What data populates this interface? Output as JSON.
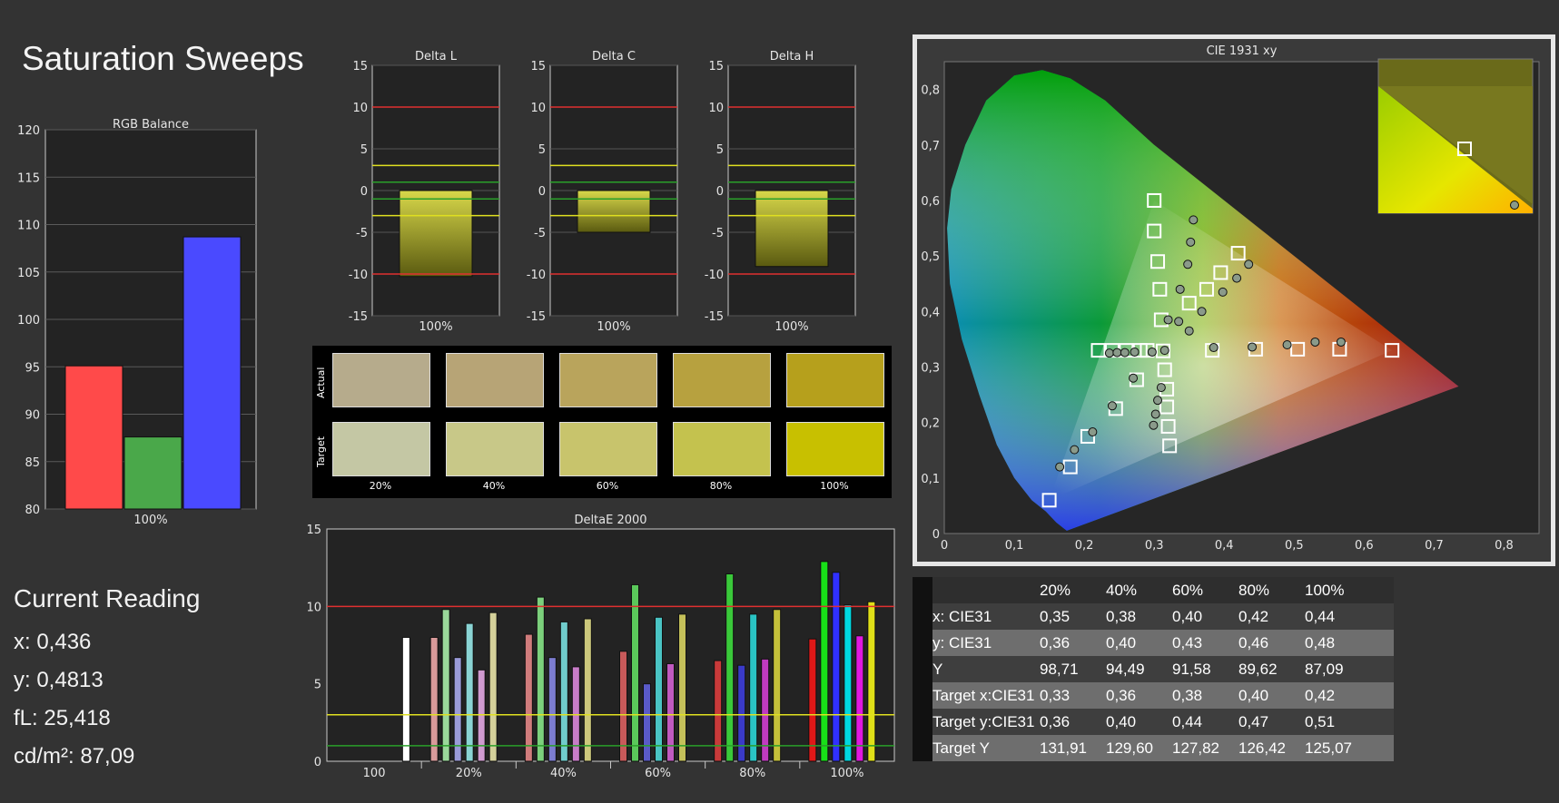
{
  "title": "Saturation Sweeps",
  "rgb_balance": {
    "title": "RGB Balance",
    "yticks": [
      "120",
      "115",
      "110",
      "105",
      "100",
      "95",
      "90",
      "85",
      "80"
    ],
    "xlabel": "100%",
    "colors": [
      "#ff4a4a",
      "#4aa84a",
      "#4a4aff"
    ]
  },
  "current_reading": {
    "title": "Current Reading",
    "lines": [
      "x: 0,436",
      "y: 0,4813",
      "fL: 25,418",
      "cd/m²: 87,09"
    ]
  },
  "delta_titles": [
    "Delta L",
    "Delta C",
    "Delta H"
  ],
  "delta_yticks": [
    "15",
    "10",
    "5",
    "0",
    "-5",
    "-10",
    "-15"
  ],
  "delta_xlabel": "100%",
  "swatches": {
    "row_labels": [
      "Actual",
      "Target"
    ],
    "labels": [
      "20%",
      "40%",
      "60%",
      "80%",
      "100%"
    ],
    "actual_colors": [
      "#b6ab8c",
      "#b7a476",
      "#b9a45c",
      "#b7a13f",
      "#b6a01c"
    ],
    "target_colors": [
      "#c4c7a4",
      "#c8c888",
      "#c8c46c",
      "#c4c24e",
      "#c8c000"
    ]
  },
  "deltae": {
    "title": "DeltaE 2000",
    "yticks": [
      "15",
      "10",
      "5",
      "0"
    ],
    "xlabels": [
      "100",
      "20%",
      "40%",
      "60%",
      "80%",
      "100%"
    ]
  },
  "cie": {
    "title": "CIE 1931 xy",
    "xticks": [
      "0",
      "0,1",
      "0,2",
      "0,3",
      "0,4",
      "0,5",
      "0,6",
      "0,7",
      "0,8"
    ],
    "yticks": [
      "0",
      "0,1",
      "0,2",
      "0,3",
      "0,4",
      "0,5",
      "0,6",
      "0,7",
      "0,8"
    ]
  },
  "table": {
    "headers": [
      "",
      "20%",
      "40%",
      "60%",
      "80%",
      "100%"
    ],
    "rows": [
      {
        "label": "x: CIE31",
        "values": [
          "0,35",
          "0,38",
          "0,40",
          "0,42",
          "0,44"
        ]
      },
      {
        "label": "y: CIE31",
        "values": [
          "0,36",
          "0,40",
          "0,43",
          "0,46",
          "0,48"
        ]
      },
      {
        "label": "Y",
        "values": [
          "98,71",
          "94,49",
          "91,58",
          "89,62",
          "87,09"
        ]
      },
      {
        "label": "Target x:CIE31",
        "values": [
          "0,33",
          "0,36",
          "0,38",
          "0,40",
          "0,42"
        ]
      },
      {
        "label": "Target y:CIE31",
        "values": [
          "0,36",
          "0,40",
          "0,44",
          "0,47",
          "0,51"
        ]
      },
      {
        "label": "Target Y",
        "values": [
          "131,91",
          "129,60",
          "127,82",
          "126,42",
          "125,07"
        ]
      }
    ]
  },
  "chart_data": [
    {
      "type": "bar",
      "title": "RGB Balance",
      "categories": [
        "100%"
      ],
      "series": [
        {
          "name": "R",
          "values": [
            95.1
          ]
        },
        {
          "name": "G",
          "values": [
            87.6
          ]
        },
        {
          "name": "B",
          "values": [
            108.7
          ]
        }
      ],
      "ylim": [
        80,
        120
      ]
    },
    {
      "type": "bar",
      "title": "Delta L",
      "categories": [
        "100%"
      ],
      "values": [
        -10.3
      ],
      "ylim": [
        -15,
        15
      ],
      "ref_lines": [
        10,
        3,
        1,
        -1,
        -3,
        -10
      ]
    },
    {
      "type": "bar",
      "title": "Delta C",
      "categories": [
        "100%"
      ],
      "values": [
        -5.0
      ],
      "ylim": [
        -15,
        15
      ],
      "ref_lines": [
        10,
        3,
        1,
        -1,
        -3,
        -10
      ]
    },
    {
      "type": "bar",
      "title": "Delta H",
      "categories": [
        "100%"
      ],
      "values": [
        -9.1
      ],
      "ylim": [
        -15,
        15
      ],
      "ref_lines": [
        10,
        3,
        1,
        -1,
        -3,
        -10
      ]
    },
    {
      "type": "bar",
      "title": "DeltaE 2000",
      "categories": [
        "100",
        "20%",
        "40%",
        "60%",
        "80%",
        "100%"
      ],
      "ylim": [
        0,
        15
      ],
      "ref_lines": [
        10,
        3,
        1
      ],
      "groups": [
        {
          "values": [
            8.0
          ],
          "colors": [
            "#ffffff"
          ]
        },
        {
          "values": [
            8.0,
            9.8,
            6.7,
            8.9,
            5.9,
            9.6
          ],
          "colors": [
            "#d89a9a",
            "#9ad89a",
            "#9a9ad8",
            "#8ad4d4",
            "#d09ad0",
            "#d4d09a"
          ]
        },
        {
          "values": [
            8.2,
            10.6,
            6.7,
            9.0,
            6.1,
            9.2
          ],
          "colors": [
            "#d07c7c",
            "#7cd07c",
            "#7c7cd0",
            "#70cccc",
            "#c87cc8",
            "#ccc87c"
          ]
        },
        {
          "values": [
            7.1,
            11.4,
            5.0,
            9.3,
            6.3,
            9.5
          ],
          "colors": [
            "#c85a5a",
            "#5ac85a",
            "#5a5ac8",
            "#4ac4c4",
            "#c05ac0",
            "#c4c05a"
          ]
        },
        {
          "values": [
            6.5,
            12.1,
            6.2,
            9.5,
            6.6,
            9.8
          ],
          "colors": [
            "#c83a3a",
            "#3ac83a",
            "#3a3ac8",
            "#2ac4c4",
            "#c03ac0",
            "#c4c03a"
          ]
        },
        {
          "values": [
            7.9,
            12.9,
            12.2,
            10.1,
            8.1,
            10.3
          ],
          "colors": [
            "#e01818",
            "#18e018",
            "#3030ff",
            "#00d8e0",
            "#e018e0",
            "#e0e018"
          ]
        }
      ]
    },
    {
      "type": "scatter",
      "title": "CIE 1931 xy",
      "xlim": [
        0,
        0.85
      ],
      "ylim": [
        0,
        0.85
      ],
      "series": [
        {
          "name": "Target",
          "marker": "square",
          "points": [
            [
              0.64,
              0.33
            ],
            [
              0.3,
              0.6
            ],
            [
              0.15,
              0.06
            ],
            [
              0.3127,
              0.329
            ],
            [
              0.22,
              0.33
            ],
            [
              0.24,
              0.33
            ],
            [
              0.26,
              0.33
            ],
            [
              0.28,
              0.33
            ],
            [
              0.29,
              0.33
            ],
            [
              0.3,
              0.545
            ],
            [
              0.305,
              0.49
            ],
            [
              0.308,
              0.44
            ],
            [
              0.31,
              0.385
            ],
            [
              0.35,
              0.415
            ],
            [
              0.375,
              0.44
            ],
            [
              0.395,
              0.47
            ],
            [
              0.42,
              0.505
            ],
            [
              0.383,
              0.33
            ],
            [
              0.445,
              0.332
            ],
            [
              0.505,
              0.332
            ],
            [
              0.565,
              0.332
            ],
            [
              0.315,
              0.295
            ],
            [
              0.318,
              0.26
            ],
            [
              0.318,
              0.228
            ],
            [
              0.32,
              0.193
            ],
            [
              0.322,
              0.158
            ],
            [
              0.275,
              0.277
            ],
            [
              0.245,
              0.225
            ],
            [
              0.205,
              0.175
            ],
            [
              0.18,
              0.12
            ]
          ]
        },
        {
          "name": "Measured",
          "marker": "circle",
          "points": [
            [
              0.356,
              0.565
            ],
            [
              0.352,
              0.525
            ],
            [
              0.348,
              0.485
            ],
            [
              0.337,
              0.44
            ],
            [
              0.32,
              0.385
            ],
            [
              0.335,
              0.382
            ],
            [
              0.35,
              0.365
            ],
            [
              0.368,
              0.4
            ],
            [
              0.398,
              0.435
            ],
            [
              0.418,
              0.46
            ],
            [
              0.435,
              0.485
            ],
            [
              0.385,
              0.335
            ],
            [
              0.44,
              0.336
            ],
            [
              0.49,
              0.34
            ],
            [
              0.53,
              0.345
            ],
            [
              0.567,
              0.345
            ],
            [
              0.236,
              0.325
            ],
            [
              0.247,
              0.326
            ],
            [
              0.258,
              0.326
            ],
            [
              0.272,
              0.327
            ],
            [
              0.297,
              0.327
            ],
            [
              0.27,
              0.28
            ],
            [
              0.31,
              0.263
            ],
            [
              0.305,
              0.24
            ],
            [
              0.302,
              0.215
            ],
            [
              0.299,
              0.195
            ],
            [
              0.24,
              0.23
            ],
            [
              0.212,
              0.183
            ],
            [
              0.186,
              0.151
            ],
            [
              0.165,
              0.12
            ],
            [
              0.315,
              0.33
            ],
            [
              0.79,
              0.56
            ]
          ]
        }
      ]
    }
  ]
}
